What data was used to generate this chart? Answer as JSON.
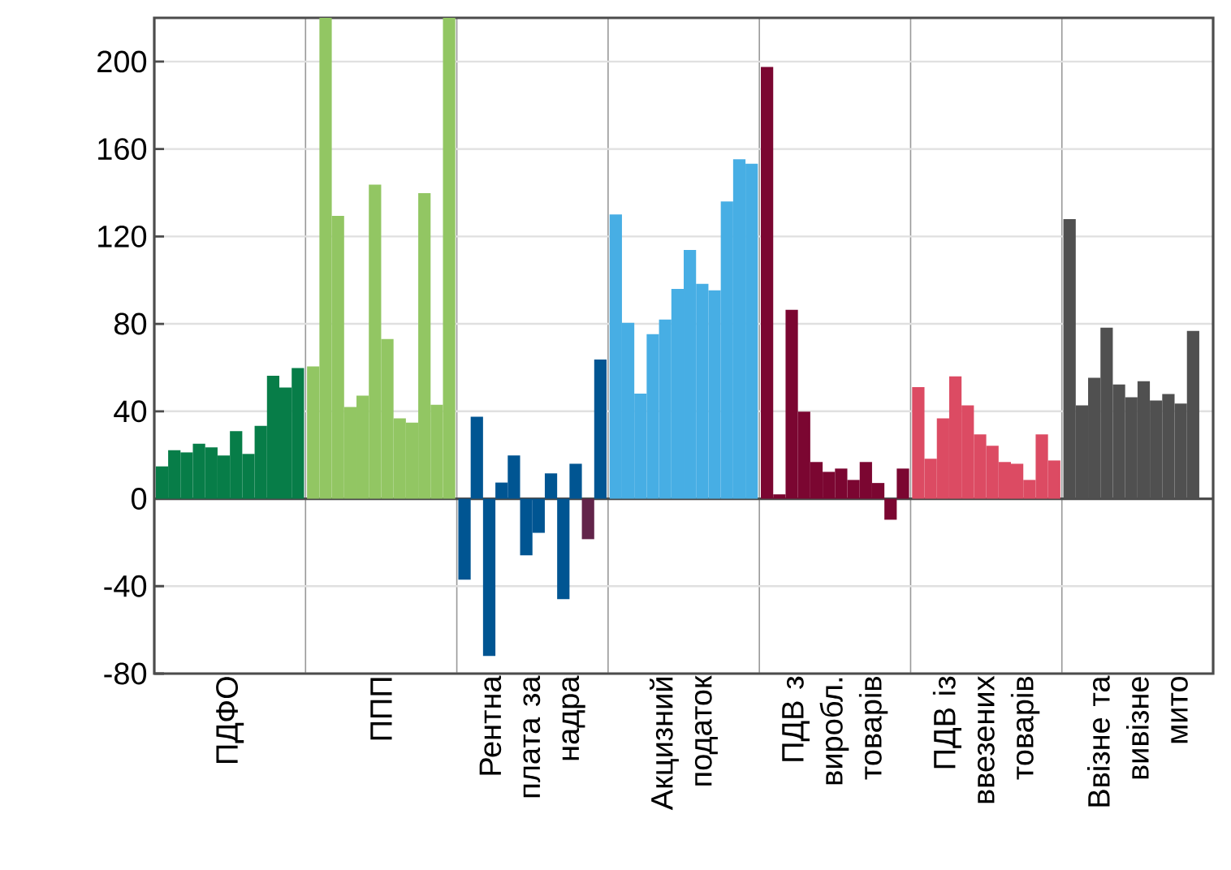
{
  "chart_data": {
    "type": "bar",
    "categories": [
      "ПДФО",
      "ППП",
      "Рентна плата за надра",
      "Акцизний податок",
      "ПДВ з виробл. товарів",
      "ПДВ із ввезених товарів",
      "Ввізне та вивізне мито"
    ],
    "series": [
      {
        "values": [
          14.8,
          60.5,
          -37.0,
          130.1,
          197.5,
          51.1,
          127.9
        ],
        "colors": [
          "#077d48",
          "#92c663",
          "#005592",
          "#47aee4",
          "#7b0631",
          "#dc4b63",
          "#505050"
        ]
      },
      {
        "values": [
          22.2,
          220,
          37.5,
          80.5,
          2.0,
          18.3,
          42.7
        ],
        "colors": [
          "#077d48",
          "#92c663",
          "#005592",
          "#47aee4",
          "#7b0631",
          "#dc4b63",
          "#505050"
        ]
      },
      {
        "values": [
          21.2,
          129.4,
          -71.9,
          48.1,
          86.4,
          36.8,
          55.3
        ],
        "colors": [
          "#077d48",
          "#92c663",
          "#005592",
          "#47aee4",
          "#7b0631",
          "#dc4b63",
          "#505050"
        ]
      },
      {
        "values": [
          25.2,
          42.0,
          7.4,
          75.3,
          39.8,
          56.0,
          78.3
        ],
        "colors": [
          "#077d48",
          "#92c663",
          "#005592",
          "#47aee4",
          "#7b0631",
          "#dc4b63",
          "#505050"
        ]
      },
      {
        "values": [
          23.5,
          47.2,
          19.8,
          82.0,
          16.8,
          42.7,
          52.3
        ],
        "colors": [
          "#077d48",
          "#92c663",
          "#005592",
          "#47aee4",
          "#7b0631",
          "#dc4b63",
          "#505050"
        ]
      },
      {
        "values": [
          19.8,
          143.7,
          -25.9,
          96.0,
          12.3,
          29.4,
          46.4
        ],
        "colors": [
          "#077d48",
          "#92c663",
          "#005592",
          "#47aee4",
          "#7b0631",
          "#dc4b63",
          "#505050"
        ]
      },
      {
        "values": [
          30.9,
          73.1,
          -15.6,
          113.8,
          13.8,
          24.2,
          53.8
        ],
        "colors": [
          "#077d48",
          "#92c663",
          "#005592",
          "#47aee4",
          "#7b0631",
          "#dc4b63",
          "#505050"
        ]
      },
      {
        "values": [
          20.5,
          36.8,
          11.6,
          98.3,
          8.6,
          16.8,
          44.9
        ],
        "colors": [
          "#077d48",
          "#92c663",
          "#005592",
          "#47aee4",
          "#7b0631",
          "#dc4b63",
          "#505050"
        ]
      },
      {
        "values": [
          33.3,
          34.8,
          -45.9,
          95.3,
          16.8,
          16.0,
          47.9
        ],
        "colors": [
          "#077d48",
          "#92c663",
          "#005592",
          "#47aee4",
          "#7b0631",
          "#dc4b63",
          "#505050"
        ]
      },
      {
        "values": [
          56.3,
          139.8,
          16.0,
          136.0,
          7.2,
          8.6,
          43.5
        ],
        "colors": [
          "#077d48",
          "#92c663",
          "#005592",
          "#47aee4",
          "#7b0631",
          "#dc4b63",
          "#505050"
        ]
      },
      {
        "values": [
          50.9,
          43.0,
          -18.5,
          155.3,
          -9.6,
          29.4,
          76.8
        ],
        "colors": [
          "#077d48",
          "#92c663",
          "#62244a",
          "#47aee4",
          "#7b0631",
          "#dc4b63",
          "#505050"
        ]
      },
      {
        "values": [
          59.8,
          220,
          63.7,
          153.3,
          13.8,
          17.5,
          null
        ],
        "colors": [
          "#077d48",
          "#92c663",
          "#005592",
          "#47aee4",
          "#7b0631",
          "#dc4b63",
          "#505050"
        ]
      }
    ],
    "ylim": [
      -80,
      220
    ],
    "yticks": [
      -80,
      -40,
      0,
      40,
      80,
      120,
      160,
      200
    ],
    "grid": true
  }
}
